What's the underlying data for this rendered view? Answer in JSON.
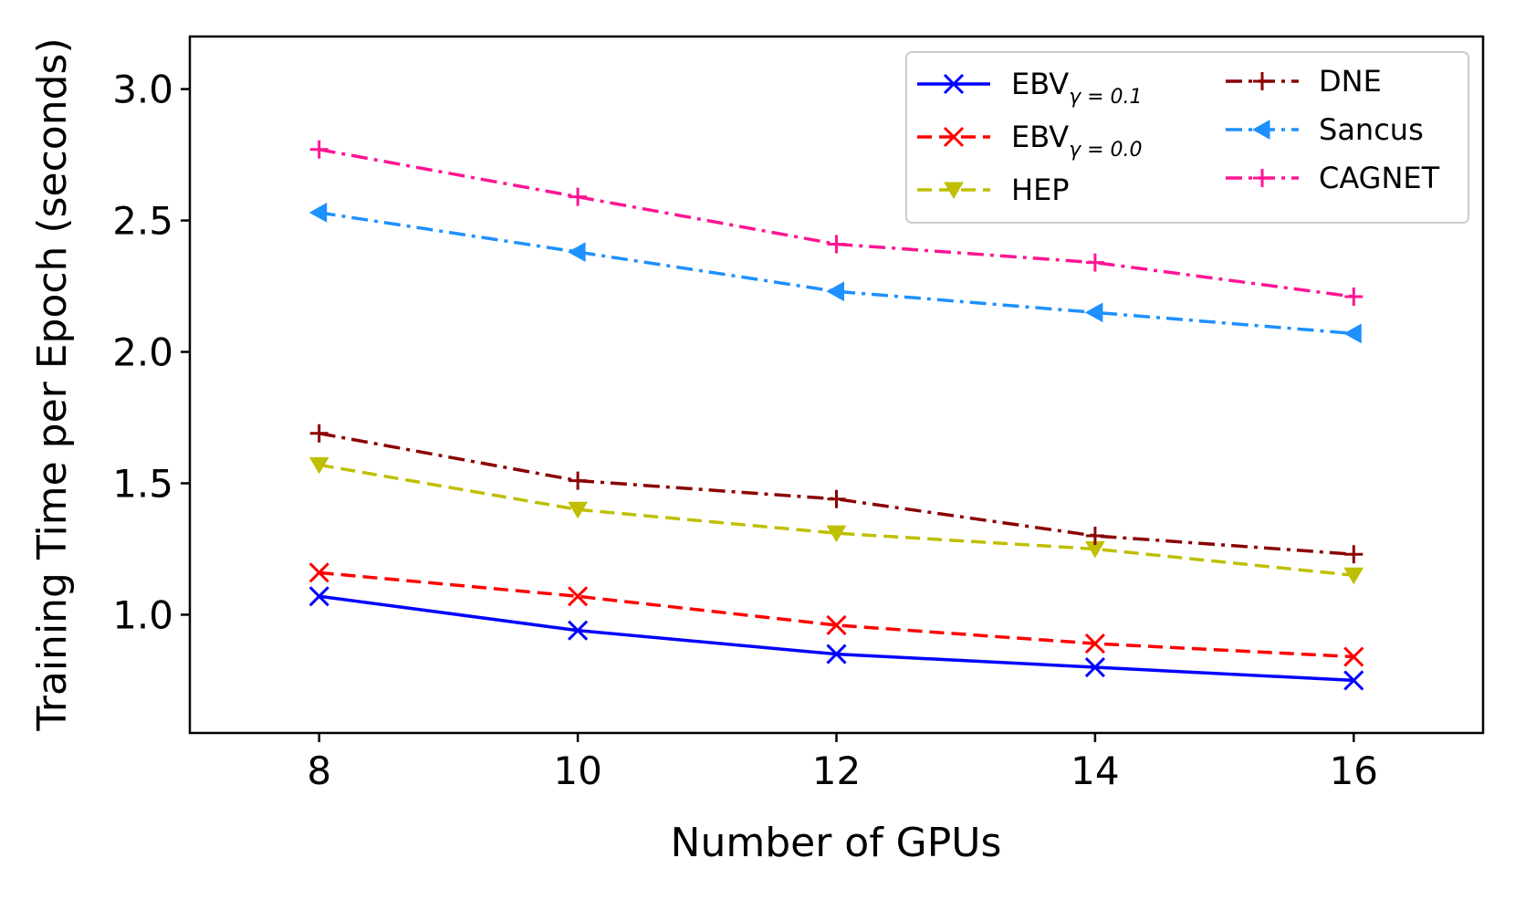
{
  "chart_data": {
    "type": "line",
    "title": "",
    "xlabel": "Number of GPUs",
    "ylabel": "Training Time per Epoch (seconds)",
    "xlim": [
      7,
      17
    ],
    "ylim": [
      0.55,
      3.2
    ],
    "x_ticks": [
      8,
      10,
      12,
      14,
      16
    ],
    "y_ticks": [
      1.0,
      1.5,
      2.0,
      2.5,
      3.0
    ],
    "x_tick_labels": [
      "8",
      "10",
      "12",
      "14",
      "16"
    ],
    "y_tick_labels": [
      "1.0",
      "1.5",
      "2.0",
      "2.5",
      "3.0"
    ],
    "x": [
      8,
      10,
      12,
      14,
      16
    ],
    "legend_position": "top-right",
    "series": [
      {
        "name": "EBV",
        "subscript": "γ = 0.1",
        "values": [
          1.07,
          0.94,
          0.85,
          0.8,
          0.75
        ],
        "color": "#0000ff",
        "dash": "solid",
        "marker": "x"
      },
      {
        "name": "EBV",
        "subscript": "γ = 0.0",
        "values": [
          1.16,
          1.07,
          0.96,
          0.89,
          0.84
        ],
        "color": "#ff0000",
        "dash": "dashed",
        "marker": "x"
      },
      {
        "name": "HEP",
        "subscript": "",
        "values": [
          1.57,
          1.4,
          1.31,
          1.25,
          1.15
        ],
        "color": "#bfbf00",
        "dash": "dashed",
        "marker": "triangle-down"
      },
      {
        "name": "DNE",
        "subscript": "",
        "values": [
          1.69,
          1.51,
          1.44,
          1.3,
          1.23
        ],
        "color": "#8b0000",
        "dash": "dashdot",
        "marker": "plus"
      },
      {
        "name": "Sancus",
        "subscript": "",
        "values": [
          2.53,
          2.38,
          2.23,
          2.15,
          2.07
        ],
        "color": "#1e90ff",
        "dash": "dashdot",
        "marker": "triangle-left"
      },
      {
        "name": "CAGNET",
        "subscript": "",
        "values": [
          2.77,
          2.59,
          2.41,
          2.34,
          2.21
        ],
        "color": "#ff1493",
        "dash": "dashdot",
        "marker": "plus"
      }
    ]
  }
}
